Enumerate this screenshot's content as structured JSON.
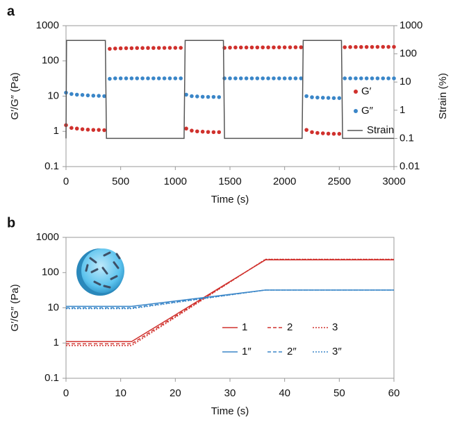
{
  "chart_data": [
    {
      "type": "line",
      "label": "a",
      "xlabel": "Time (s)",
      "ylabel": "G′/G″ (Pa)",
      "y2label": "Strain (%)",
      "xlim": [
        0,
        3000
      ],
      "xticks": [
        0,
        500,
        1000,
        1500,
        2000,
        2500,
        3000
      ],
      "ylim": [
        0.1,
        1000
      ],
      "yticks": [
        0.1,
        1,
        10,
        100,
        1000
      ],
      "yscale": "log",
      "y2lim": [
        0.01,
        1000
      ],
      "y2ticks": [
        0.01,
        0.1,
        1,
        10,
        100,
        1000
      ],
      "y2scale": "log",
      "legend": "right",
      "x": [
        0,
        50,
        100,
        150,
        200,
        250,
        300,
        350,
        400,
        450,
        500,
        550,
        600,
        650,
        700,
        750,
        800,
        850,
        900,
        950,
        1000,
        1050,
        1100,
        1150,
        1200,
        1250,
        1300,
        1350,
        1400,
        1450,
        1500,
        1550,
        1600,
        1650,
        1700,
        1750,
        1800,
        1850,
        1900,
        1950,
        2000,
        2050,
        2100,
        2150,
        2200,
        2250,
        2300,
        2350,
        2400,
        2450,
        2500,
        2550,
        2600,
        2650,
        2700,
        2750,
        2800,
        2850,
        2900,
        2950,
        3000
      ],
      "series": [
        {
          "name": "G′",
          "color": "#d0312d",
          "style": "markers",
          "values": [
            1.5,
            1.25,
            1.2,
            1.15,
            1.12,
            1.1,
            1.1,
            1.08,
            220,
            225,
            228,
            230,
            230,
            232,
            232,
            233,
            233,
            234,
            234,
            235,
            235,
            235,
            1.2,
            1.05,
            1.0,
            0.98,
            0.96,
            0.95,
            0.95,
            235,
            238,
            240,
            240,
            240,
            241,
            241,
            242,
            242,
            242,
            243,
            243,
            243,
            244,
            244,
            1.1,
            0.95,
            0.9,
            0.88,
            0.86,
            0.85,
            0.85,
            245,
            247,
            248,
            248,
            249,
            249,
            250,
            250,
            250,
            250
          ]
        },
        {
          "name": "G″",
          "color": "#3a86c8",
          "style": "markers",
          "values": [
            12.5,
            11.5,
            11,
            10.8,
            10.5,
            10.3,
            10.2,
            10,
            31,
            32,
            32,
            32,
            32,
            32,
            32,
            32,
            32,
            32,
            32,
            32,
            32,
            32,
            11,
            10,
            9.8,
            9.6,
            9.5,
            9.5,
            9.4,
            32,
            32,
            32,
            32,
            32,
            32,
            32,
            32,
            32,
            32,
            32,
            32,
            32,
            32,
            32,
            10,
            9.3,
            9.1,
            9,
            8.9,
            8.8,
            8.8,
            32,
            32,
            32,
            32,
            32,
            32,
            32,
            32,
            32,
            32
          ]
        },
        {
          "name": "Strain",
          "color": "#555555",
          "style": "solid",
          "axis": "y2",
          "x": [
            0,
            5,
            360,
            370,
            1080,
            1090,
            1440,
            1450,
            2160,
            2170,
            2520,
            2530,
            3000
          ],
          "values": [
            0.1,
            300,
            300,
            0.1,
            0.1,
            300,
            300,
            0.1,
            0.1,
            300,
            300,
            0.1,
            0.1
          ]
        }
      ]
    },
    {
      "type": "line",
      "label": "b",
      "xlabel": "Time (s)",
      "ylabel": "G′/G″ (Pa)",
      "xlim": [
        0,
        60
      ],
      "xticks": [
        0,
        10,
        20,
        30,
        40,
        50,
        60
      ],
      "ylim": [
        0.1,
        1000
      ],
      "yticks": [
        0.1,
        1,
        10,
        100,
        1000
      ],
      "yscale": "log",
      "legend": "center",
      "x": [
        0,
        12,
        36.5,
        60
      ],
      "series": [
        {
          "name": "1",
          "color": "#d0312d",
          "style": "solid",
          "values": [
            1.1,
            1.1,
            230,
            230
          ]
        },
        {
          "name": "2",
          "color": "#d0312d",
          "style": "dashed",
          "values": [
            0.95,
            0.95,
            235,
            235
          ]
        },
        {
          "name": "3",
          "color": "#d0312d",
          "style": "dotted",
          "values": [
            0.85,
            0.85,
            240,
            240
          ]
        },
        {
          "name": "1″",
          "color": "#3a86c8",
          "style": "solid",
          "values": [
            11,
            11,
            32,
            32
          ]
        },
        {
          "name": "2″",
          "color": "#3a86c8",
          "style": "dashed",
          "values": [
            10,
            10,
            32,
            32
          ]
        },
        {
          "name": "3″",
          "color": "#3a86c8",
          "style": "dotted",
          "values": [
            9.5,
            9.5,
            32,
            32
          ]
        }
      ]
    }
  ]
}
